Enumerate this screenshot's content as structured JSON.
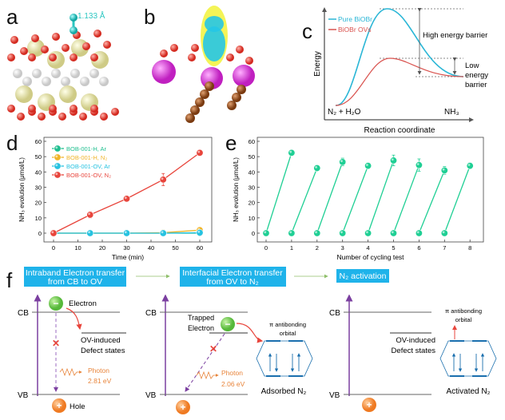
{
  "panel_labels": {
    "a": "a",
    "b": "b",
    "c": "c",
    "d": "d",
    "e": "e",
    "f": "f"
  },
  "panel_a": {
    "bond_length": "1.133 Å",
    "colors": {
      "oxygen": "#e03a2e",
      "bismuth": "#ece9b0",
      "bromine": "#f2f2f2",
      "nitrogen": "#2cc7c2"
    }
  },
  "panel_b": {
    "colors": {
      "bismuth": "#e04ad9",
      "oxygen": "#e03a2e",
      "carbon": "#9a4e1c",
      "charge_pos": "#f2f23a",
      "charge_neg": "#26c6e6"
    }
  },
  "panel_c": {
    "ylabel": "Energy",
    "xlabel": "Reaction coordinate",
    "legend": [
      {
        "name": "Pure BiOBr",
        "color": "#2ab6d6"
      },
      {
        "name": "BiOBr OVs",
        "color": "#d9534f"
      }
    ],
    "high_barrier": "High energy barrier",
    "low_barrier": [
      "Low",
      "energy",
      "barrier"
    ],
    "reactant": "N₂ + H₂O",
    "product": "NH₃"
  },
  "chart_data": [
    {
      "type": "line",
      "panel": "d",
      "xlabel": "Time (min)",
      "ylabel": "NH₃ evolution (μmol/L)",
      "xlim": [
        0,
        60
      ],
      "ylim": [
        -5,
        60
      ],
      "xticks": [
        0,
        10,
        20,
        30,
        40,
        50,
        60
      ],
      "yticks": [
        0,
        10,
        20,
        30,
        40,
        50,
        60
      ],
      "legend_position": "top-left",
      "x": [
        0,
        15,
        30,
        45,
        60
      ],
      "series": [
        {
          "name": "BOB-001-H, Ar",
          "color": "#1fbf8f",
          "values": [
            0,
            0,
            0,
            0,
            0
          ],
          "errors": [
            0,
            0,
            0,
            0,
            0
          ]
        },
        {
          "name": "BOB-001-H, N₂",
          "color": "#f0b429",
          "values": [
            0,
            0,
            0,
            0.3,
            2
          ],
          "errors": [
            0,
            0,
            0,
            0,
            0.5
          ]
        },
        {
          "name": "BOB-001-OV, Ar",
          "color": "#26c2e0",
          "values": [
            0,
            0,
            0,
            0,
            0.3
          ],
          "errors": [
            0,
            0,
            0,
            0,
            0
          ]
        },
        {
          "name": "BOB-001-OV, N₂",
          "color": "#e8453c",
          "values": [
            0,
            12,
            22.5,
            35,
            52.5
          ],
          "errors": [
            0,
            2,
            1,
            4,
            1.5
          ]
        }
      ]
    },
    {
      "type": "line",
      "panel": "e",
      "xlabel": "Number of cycling test",
      "ylabel": "NH₃ evolution (μmol/L)",
      "xlim": [
        -0.4,
        8.6
      ],
      "ylim": [
        -5,
        60
      ],
      "xticks": [
        0,
        1,
        2,
        3,
        4,
        5,
        6,
        7,
        8
      ],
      "yticks": [
        0,
        10,
        20,
        30,
        40,
        50,
        60
      ],
      "color": "#1fcf94",
      "cycles": [
        {
          "start": 0,
          "end": 1,
          "value": 52.5,
          "error": 0.5
        },
        {
          "start": 1,
          "end": 2,
          "value": 42.5,
          "error": 0.5
        },
        {
          "start": 2,
          "end": 3,
          "value": 46.5,
          "error": 2.5
        },
        {
          "start": 3,
          "end": 4,
          "value": 44,
          "error": 2
        },
        {
          "start": 4,
          "end": 5,
          "value": 47.5,
          "error": 3.5
        },
        {
          "start": 5,
          "end": 6,
          "value": 44.5,
          "error": 4
        },
        {
          "start": 6,
          "end": 7,
          "value": 41,
          "error": 2.5
        },
        {
          "start": 7,
          "end": 8,
          "value": 44,
          "error": 2
        }
      ]
    }
  ],
  "panel_f": {
    "steps": [
      {
        "line1": "Intraband Electron transfer",
        "line2": "from CB to OV"
      },
      {
        "line1": "Interfacial Electron transfer",
        "line2": "from OV to N₂"
      },
      {
        "line1": "N₂ activation"
      }
    ],
    "accent": "#1fb3ea",
    "cb": "CB",
    "vb": "VB",
    "electron": "Electron",
    "hole": "Hole",
    "trapped": [
      "Trapped",
      "Electron"
    ],
    "defect": [
      "OV-induced",
      "Defect states"
    ],
    "photon1": [
      "Photon",
      "2.81 eV"
    ],
    "photon2": [
      "Photon",
      "2.06 eV"
    ],
    "orbital": [
      "π antibonding",
      "orbital"
    ],
    "adsorbed": "Adsorbed N₂",
    "activated": "Activated N₂",
    "minus": "−",
    "plus": "+"
  }
}
